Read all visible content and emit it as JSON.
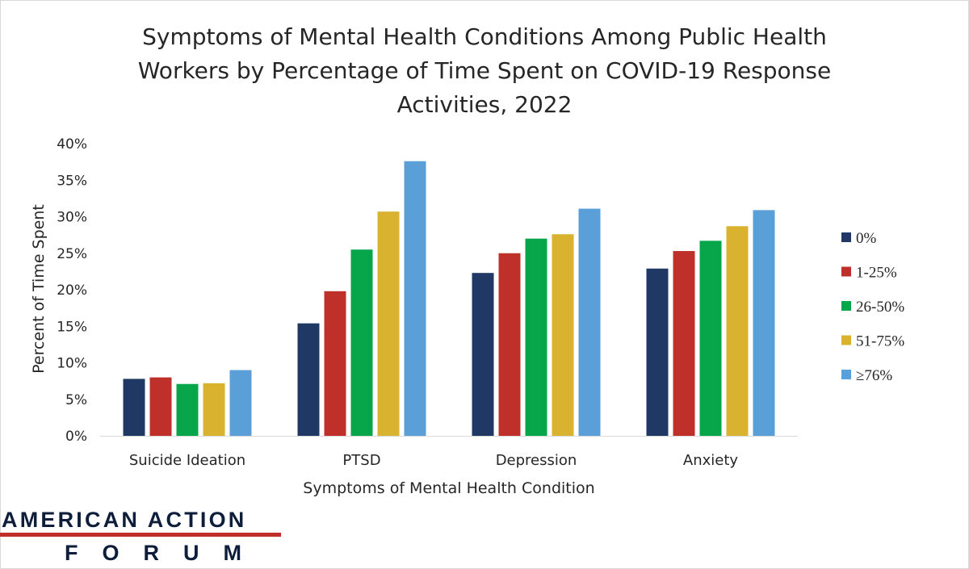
{
  "chart_data": {
    "type": "bar",
    "title": "Symptoms of Mental Health Conditions Among Public Health Workers by Percentage of Time Spent on COVID-19 Response Activities, 2022",
    "title_lines": [
      "Symptoms of Mental Health Conditions Among Public Health",
      "Workers by Percentage of Time Spent on COVID-19 Response",
      "Activities, 2022"
    ],
    "xlabel": "Symptoms of Mental Health Condition",
    "ylabel": "Percent of Time Spent",
    "categories": [
      "Suicide Ideation",
      "PTSD",
      "Depression",
      "Anxiety"
    ],
    "ylim": [
      0,
      40
    ],
    "yticks": [
      0,
      5,
      10,
      15,
      20,
      25,
      30,
      35,
      40
    ],
    "yticks_labels": [
      "0%",
      "5%",
      "10%",
      "15%",
      "20%",
      "25%",
      "30%",
      "35%",
      "40%"
    ],
    "grid": false,
    "legend_position": "right",
    "series": [
      {
        "name": "0%",
        "color": "#203864",
        "values": [
          7.8,
          15.4,
          22.3,
          22.9
        ]
      },
      {
        "name": "1-25%",
        "color": "#c0302a",
        "values": [
          8.0,
          19.8,
          25.0,
          25.3
        ]
      },
      {
        "name": "26-50%",
        "color": "#07a64a",
        "values": [
          7.1,
          25.5,
          27.0,
          26.7
        ]
      },
      {
        "name": "51-75%",
        "color": "#d9b22f",
        "values": [
          7.2,
          30.7,
          27.6,
          28.7
        ]
      },
      {
        "name": "≥76%",
        "color": "#5b9fd9",
        "values": [
          9.0,
          37.6,
          31.1,
          30.9
        ]
      }
    ]
  },
  "logo": {
    "line1": "AMERICAN ACTION",
    "line2": "FORUM",
    "text_color": "#0e1e3a",
    "rule_color": "#c0302a"
  }
}
